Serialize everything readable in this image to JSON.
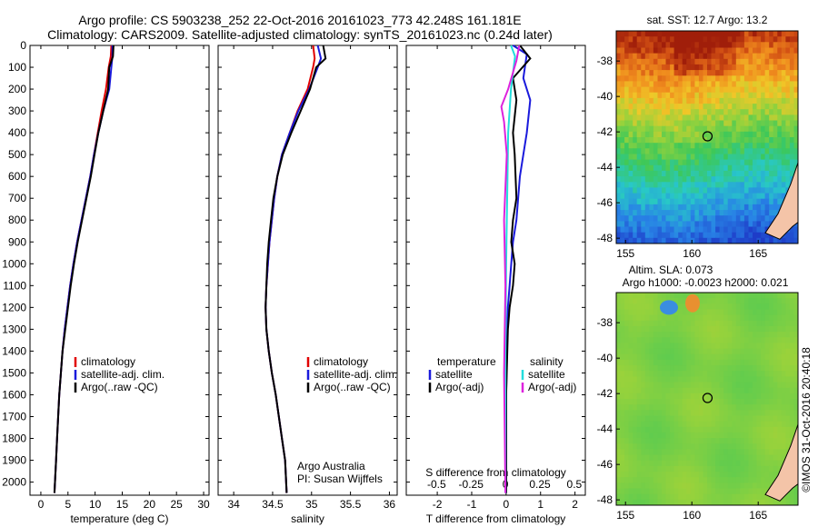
{
  "title": {
    "line1": "Argo profile: CS 5903238_252 22-Oct-2016 20161023_773 42.248S 161.181E",
    "line2": "Climatology: CARS2009. Satellite-adjusted climatology: synTS_20161023.nc (0.24d later)"
  },
  "colors": {
    "climatology": "#e00000",
    "satellite_temp": "#1a1adc",
    "argo": "#000000",
    "satellite_sal": "#22dddd",
    "argo_adj_sal": "#dd22dd"
  },
  "chart_data": [
    {
      "type": "line",
      "panel": "temperature",
      "xlabel": "temperature (deg C)",
      "ylabel": "",
      "xlim": [
        -2,
        31
      ],
      "ylim": [
        2060,
        0
      ],
      "xticks": [
        0,
        5,
        10,
        15,
        20,
        25,
        30
      ],
      "yticks": [
        0,
        100,
        200,
        300,
        400,
        500,
        600,
        700,
        800,
        900,
        1000,
        1100,
        1200,
        1300,
        1400,
        1500,
        1600,
        1700,
        1800,
        1900,
        2000
      ],
      "legend": [
        "climatology",
        "satellite-adj. clim.",
        "Argo(..raw -QC)"
      ],
      "series": [
        {
          "name": "climatology",
          "color": "#e00000",
          "x": [
            13.0,
            12.9,
            12.5,
            12.0,
            11.2,
            10.5,
            9.8,
            9.1,
            8.3,
            7.5,
            6.7,
            6.0,
            5.4,
            4.9,
            4.4,
            4.0,
            3.7,
            3.4,
            3.2,
            3.0,
            2.8,
            2.6,
            2.5
          ],
          "y": [
            0,
            50,
            100,
            200,
            300,
            400,
            500,
            600,
            700,
            800,
            900,
            1000,
            1100,
            1200,
            1300,
            1400,
            1500,
            1600,
            1700,
            1800,
            1900,
            2000,
            2050
          ]
        },
        {
          "name": "satellite-adj. clim.",
          "color": "#1a1adc",
          "x": [
            13.2,
            13.2,
            13.0,
            12.6,
            11.5,
            10.6,
            9.8,
            9.1,
            8.3,
            7.5,
            6.7,
            6.0,
            5.4,
            4.9,
            4.4,
            4.0,
            3.7,
            3.4,
            3.2,
            3.0,
            2.8,
            2.6,
            2.5
          ],
          "y": [
            0,
            50,
            100,
            200,
            300,
            400,
            500,
            600,
            700,
            800,
            900,
            1000,
            1100,
            1200,
            1300,
            1400,
            1500,
            1600,
            1700,
            1800,
            1900,
            2000,
            2050
          ]
        },
        {
          "name": "Argo(..raw -QC)",
          "color": "#000000",
          "x": [
            13.4,
            13.3,
            12.6,
            12.4,
            11.5,
            10.6,
            9.9,
            9.2,
            8.4,
            7.6,
            6.8,
            6.1,
            5.5,
            5.0,
            4.5,
            4.0,
            3.7,
            3.4,
            3.2,
            3.0,
            2.8,
            2.6,
            2.5
          ],
          "y": [
            0,
            50,
            100,
            200,
            300,
            400,
            500,
            600,
            700,
            800,
            900,
            1000,
            1100,
            1200,
            1300,
            1400,
            1500,
            1600,
            1700,
            1800,
            1900,
            2000,
            2050
          ]
        }
      ]
    },
    {
      "type": "line",
      "panel": "salinity",
      "xlabel": "salinity",
      "ylabel": "",
      "xlim": [
        33.8,
        36.1
      ],
      "ylim": [
        2060,
        0
      ],
      "xticks": [
        34,
        34.5,
        35,
        35.5,
        36
      ],
      "xticklabels": [
        "34",
        "34.5",
        "35",
        "35.5",
        "36"
      ],
      "legend": [
        "climatology",
        "satellite-adj. clim.",
        "Argo(..raw -QC)"
      ],
      "annotation": [
        "Argo Australia",
        "PI: Susan Wijffels"
      ],
      "series": [
        {
          "name": "climatology",
          "color": "#e00000",
          "x": [
            35.02,
            35.04,
            35.02,
            34.95,
            34.82,
            34.72,
            34.62,
            34.56,
            34.52,
            34.49,
            34.46,
            34.44,
            34.42,
            34.41,
            34.42,
            34.45,
            34.49,
            34.54,
            34.58,
            34.62,
            34.66,
            34.68
          ],
          "y": [
            0,
            60,
            100,
            200,
            300,
            400,
            500,
            600,
            700,
            800,
            900,
            1000,
            1100,
            1200,
            1300,
            1400,
            1500,
            1600,
            1700,
            1800,
            1900,
            2050
          ]
        },
        {
          "name": "satellite-adj. clim.",
          "color": "#1a1adc",
          "x": [
            35.08,
            35.12,
            35.08,
            34.97,
            34.83,
            34.72,
            34.62,
            34.56,
            34.52,
            34.49,
            34.46,
            34.44,
            34.42,
            34.41,
            34.42,
            34.45,
            34.49,
            34.54,
            34.58,
            34.62,
            34.66,
            34.68
          ],
          "y": [
            0,
            60,
            100,
            200,
            300,
            400,
            500,
            600,
            700,
            800,
            900,
            1000,
            1100,
            1200,
            1300,
            1400,
            1500,
            1600,
            1700,
            1800,
            1900,
            2050
          ]
        },
        {
          "name": "Argo(..raw -QC)",
          "color": "#000000",
          "x": [
            35.15,
            35.18,
            35.06,
            34.98,
            34.86,
            34.74,
            34.63,
            34.56,
            34.51,
            34.48,
            34.45,
            34.43,
            34.42,
            34.41,
            34.42,
            34.45,
            34.49,
            34.54,
            34.58,
            34.62,
            34.66,
            34.68
          ],
          "y": [
            0,
            60,
            100,
            200,
            300,
            400,
            500,
            600,
            700,
            800,
            900,
            1000,
            1100,
            1200,
            1300,
            1400,
            1500,
            1600,
            1700,
            1800,
            1900,
            2050
          ]
        }
      ]
    },
    {
      "type": "line",
      "panel": "difference",
      "xlabel": "T difference from climatology",
      "xlabel2": "S difference from climatology",
      "xlim": [
        -2.9,
        2.3
      ],
      "ylim": [
        2060,
        0
      ],
      "xticks": [
        -2,
        -1,
        0,
        1,
        2
      ],
      "xticklabels": [
        "-2",
        "-1",
        "0",
        "1",
        "2"
      ],
      "xticks2": [
        -0.5,
        -0.25,
        0,
        0.25,
        0.5
      ],
      "xticklabels2": [
        "-0.5",
        "-0.25",
        "0",
        "0.25",
        "0.5"
      ],
      "legend_temperature": [
        "temperature",
        "satellite",
        "Argo(-adj)"
      ],
      "legend_salinity": [
        "salinity",
        "satellite",
        "Argo(-adj)"
      ],
      "series": [
        {
          "name": "satellite",
          "group": "temperature",
          "color": "#1a1adc",
          "x": [
            0.2,
            0.6,
            0.5,
            0.7,
            0.6,
            0.5,
            0.4,
            0.35,
            0.3,
            0.2,
            0.15,
            0.1,
            0.05,
            0.02,
            0.0,
            0.0
          ],
          "y": [
            0,
            40,
            150,
            250,
            400,
            500,
            600,
            700,
            800,
            900,
            1000,
            1100,
            1200,
            1400,
            1600,
            2050
          ]
        },
        {
          "name": "Argo(-adj)",
          "group": "temperature",
          "color": "#000000",
          "x": [
            0.4,
            0.7,
            0.2,
            0.3,
            0.2,
            0.25,
            0.3,
            0.2,
            0.15,
            0.25,
            0.2,
            0.1,
            0.05,
            0.0,
            0.0
          ],
          "y": [
            0,
            60,
            150,
            250,
            400,
            500,
            700,
            800,
            900,
            1000,
            1100,
            1200,
            1300,
            1600,
            2050
          ]
        },
        {
          "name": "satellite",
          "group": "salinity",
          "color": "#22dddd",
          "x": [
            0.04,
            0.07,
            0.04,
            0.02,
            0.015,
            0.01,
            0.005,
            0.0,
            0.0
          ],
          "y": [
            0,
            50,
            200,
            400,
            600,
            800,
            1000,
            1400,
            2050
          ]
        },
        {
          "name": "Argo(-adj)",
          "group": "salinity",
          "color": "#dd22dd",
          "x": [
            0.1,
            0.08,
            0.02,
            -0.03,
            -0.01,
            0.01,
            -0.01,
            0.0,
            -0.01,
            0.0
          ],
          "y": [
            0,
            70,
            200,
            280,
            350,
            500,
            800,
            1100,
            1500,
            2050
          ]
        }
      ]
    },
    {
      "type": "heatmap",
      "panel": "sst_map",
      "title": "sat. SST: 12.7 Argo: 13.2",
      "xlim": [
        154.3,
        168
      ],
      "ylim": [
        -48.3,
        -36.3
      ],
      "xticks": [
        155,
        160,
        165
      ],
      "yticks": [
        -38,
        -40,
        -42,
        -44,
        -46,
        -48
      ],
      "marker": {
        "lon": 161.181,
        "lat": -42.248
      }
    },
    {
      "type": "heatmap",
      "panel": "sla_map",
      "title": "Altim. SLA: 0.073",
      "subtitle": "Argo h1000: -0.0023 h2000: 0.021",
      "xlim": [
        154.3,
        168
      ],
      "ylim": [
        -48.3,
        -36.3
      ],
      "xticks": [
        155,
        160,
        165
      ],
      "yticks": [
        -38,
        -40,
        -42,
        -44,
        -46,
        -48
      ],
      "marker": {
        "lon": 161.181,
        "lat": -42.248
      }
    }
  ],
  "credit": "©IMOS 31-Oct-2016 20:40:18"
}
